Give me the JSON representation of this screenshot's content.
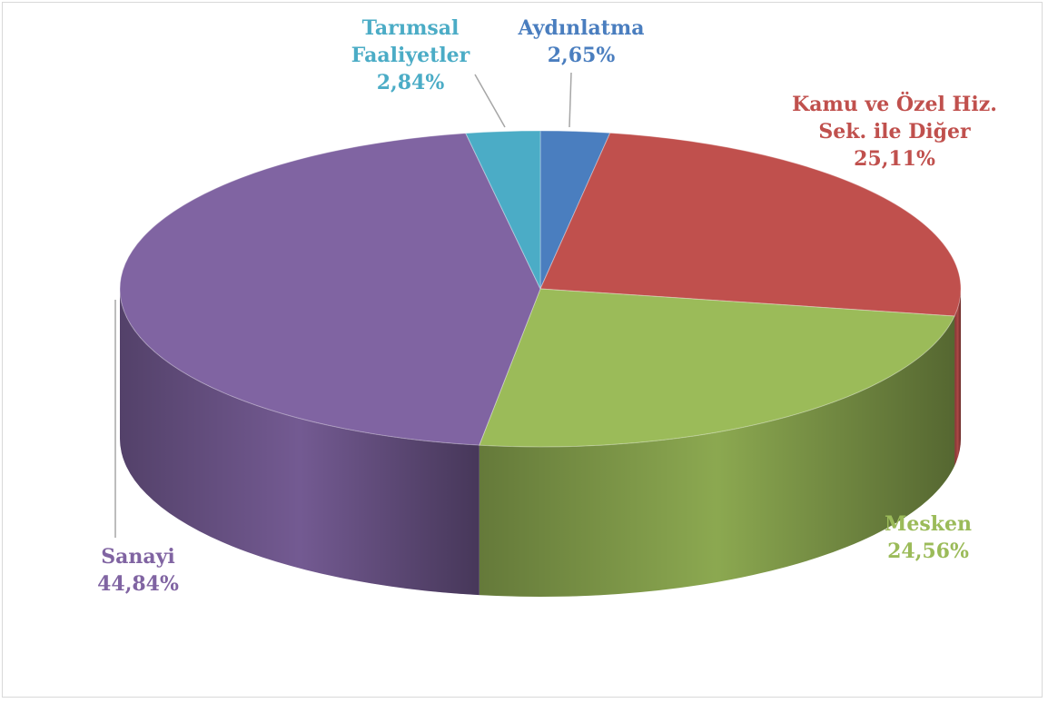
{
  "chart_data": {
    "type": "pie",
    "style": "3d",
    "title": "",
    "slices": [
      {
        "label": [
          "Aydınlatma"
        ],
        "value_text": "2,65%",
        "value": 2.65,
        "color": "#4a7ebf",
        "label_color": "#4a7ebf"
      },
      {
        "label": [
          "Kamu ve Özel Hiz.",
          "Sek. ile Diğer"
        ],
        "value_text": "25,11%",
        "value": 25.11,
        "color": "#c0504d",
        "label_color": "#c0504d"
      },
      {
        "label": [
          "Mesken"
        ],
        "value_text": "24,56%",
        "value": 24.56,
        "color": "#9bbb59",
        "label_color": "#9bbb59"
      },
      {
        "label": [
          "Sanayi"
        ],
        "value_text": "44,84%",
        "value": 44.84,
        "color": "#8064a2",
        "label_color": "#8064a2"
      },
      {
        "label": [
          "Tarımsal",
          "Faaliyetler"
        ],
        "value_text": "2,84%",
        "value": 2.84,
        "color": "#4bacc6",
        "label_color": "#4bacc6"
      }
    ],
    "legend": "none"
  }
}
